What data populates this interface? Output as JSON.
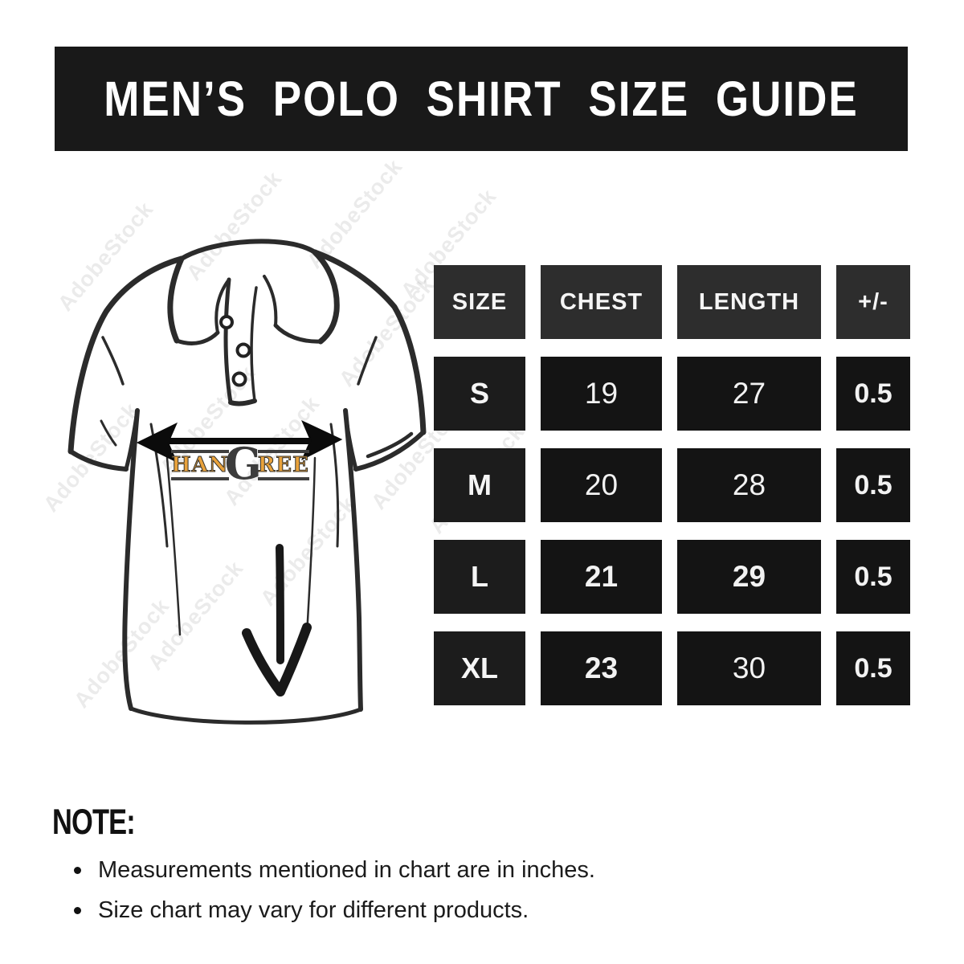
{
  "header": {
    "title": "MEN’S POLO SHIRT SIZE GUIDE"
  },
  "illustration": {
    "description": "Hand-drawn polo shirt sketch with chest width arrow and length arrow",
    "brand_logo": {
      "left": "HAN",
      "g": "G",
      "right": "REE"
    }
  },
  "watermark": {
    "text": "AdobeStock"
  },
  "size_chart": {
    "columns": [
      "SIZE",
      "CHEST",
      "LENGTH",
      "+/-"
    ],
    "rows": [
      {
        "size": "S",
        "chest": "19",
        "length": "27",
        "tolerance": "0.5",
        "chest_bold": false,
        "length_bold": false
      },
      {
        "size": "M",
        "chest": "20",
        "length": "28",
        "tolerance": "0.5",
        "chest_bold": false,
        "length_bold": false
      },
      {
        "size": "L",
        "chest": "21",
        "length": "29",
        "tolerance": "0.5",
        "chest_bold": true,
        "length_bold": true
      },
      {
        "size": "XL",
        "chest": "23",
        "length": "30",
        "tolerance": "0.5",
        "chest_bold": true,
        "length_bold": false
      }
    ]
  },
  "chart_data": {
    "type": "table",
    "title": "MEN’S POLO SHIRT SIZE GUIDE",
    "columns": [
      "SIZE",
      "CHEST",
      "LENGTH",
      "+/-"
    ],
    "rows": [
      [
        "S",
        "19",
        "27",
        "0.5"
      ],
      [
        "M",
        "20",
        "28",
        "0.5"
      ],
      [
        "L",
        "21",
        "29",
        "0.5"
      ],
      [
        "XL",
        "23",
        "30",
        "0.5"
      ]
    ],
    "units": "inches"
  },
  "note": {
    "label": "NOTE:",
    "bullets": [
      "Measurements mentioned in chart are in inches.",
      "Size chart may vary for different products."
    ]
  },
  "colors": {
    "banner_bg": "#191919",
    "header_cell_bg": "#2d2d2d",
    "size_cell_bg": "#1c1c1c",
    "data_cell_bg": "#141414",
    "logo_orange": "#E9A23B",
    "logo_dark": "#3C3C3C",
    "sketch_ink": "#2B2B2B"
  }
}
